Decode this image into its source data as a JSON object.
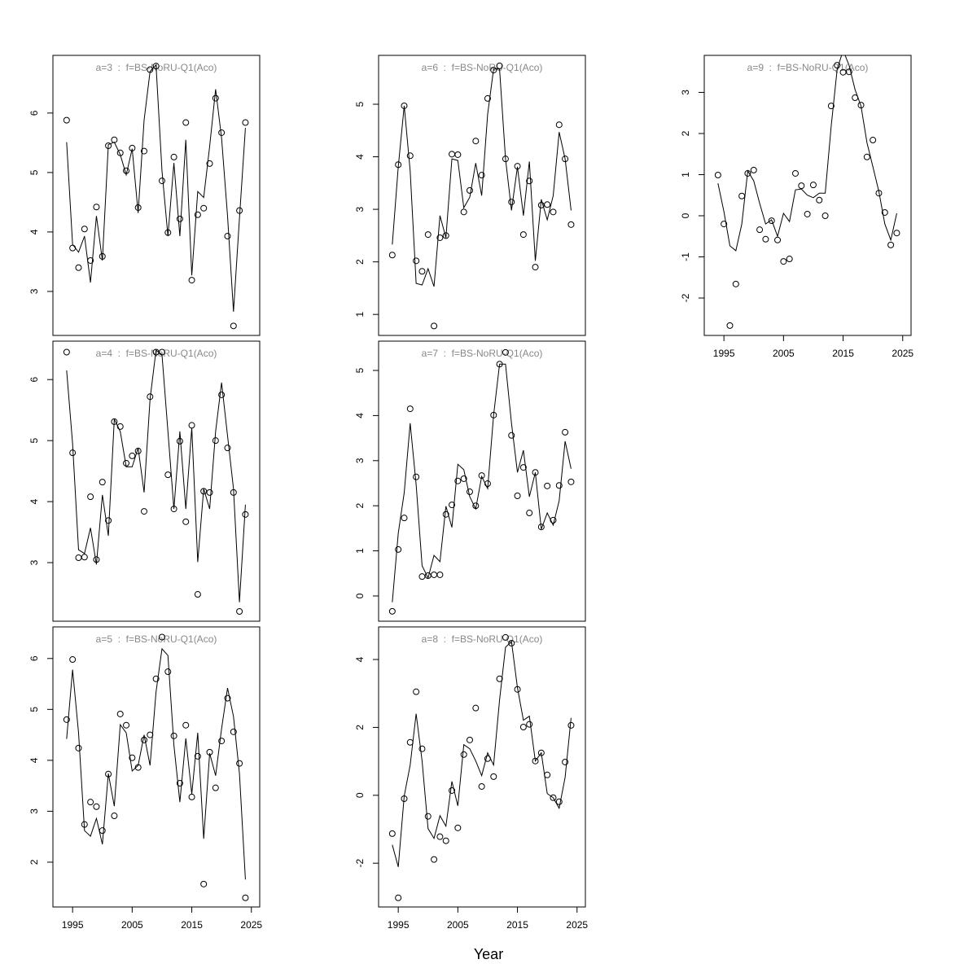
{
  "xlabel": "Year",
  "chart_data": [
    {
      "type": "line",
      "title": "a=3  :  f=BS-NoRU-Q1(Aco)",
      "x": [
        1994,
        1995,
        1996,
        1997,
        1998,
        1999,
        2000,
        2001,
        2002,
        2003,
        2004,
        2005,
        2006,
        2007,
        2008,
        2009,
        2010,
        2011,
        2012,
        2013,
        2014,
        2015,
        2016,
        2017,
        2018,
        2019,
        2020,
        2021,
        2022,
        2023,
        2024
      ],
      "xlim": [
        1991.7,
        2026.4
      ],
      "ylim": [
        2.26,
        6.97
      ],
      "yticks": [
        3,
        4,
        5,
        6
      ],
      "series": [
        {
          "style": "points",
          "color": "#000000",
          "values": [
            5.88,
            3.73,
            3.4,
            4.05,
            3.52,
            4.42,
            3.59,
            5.45,
            5.55,
            5.33,
            5.03,
            5.41,
            4.41,
            5.36,
            6.73,
            6.79,
            4.86,
            3.99,
            5.26,
            4.22,
            5.84,
            3.19,
            4.29,
            4.4,
            5.15,
            6.25,
            5.67,
            3.93,
            2.42,
            4.36,
            5.84
          ]
        },
        {
          "style": "line",
          "color": "#000000",
          "values": [
            5.51,
            3.79,
            3.66,
            3.93,
            3.15,
            4.27,
            3.52,
            5.47,
            5.51,
            5.3,
            4.96,
            5.4,
            4.32,
            5.88,
            6.7,
            6.81,
            5.03,
            3.93,
            5.16,
            3.93,
            5.55,
            3.27,
            4.68,
            4.58,
            5.44,
            6.4,
            5.58,
            4.27,
            2.66,
            4.23,
            5.75
          ]
        }
      ]
    },
    {
      "type": "line",
      "title": "a=4  :  f=BS-NoRU-Q1(Aco)",
      "x": [
        1994,
        1995,
        1996,
        1997,
        1998,
        1999,
        2000,
        2001,
        2002,
        2003,
        2004,
        2005,
        2006,
        2007,
        2008,
        2009,
        2010,
        2011,
        2012,
        2013,
        2014,
        2015,
        2016,
        2017,
        2018,
        2019,
        2020,
        2021,
        2022,
        2023,
        2024
      ],
      "xlim": [
        1991.7,
        2026.4
      ],
      "ylim": [
        2.04,
        6.63
      ],
      "yticks": [
        3,
        4,
        5,
        6
      ],
      "series": [
        {
          "style": "points",
          "color": "#000000",
          "values": [
            6.45,
            4.8,
            3.08,
            3.09,
            4.08,
            3.05,
            4.32,
            3.69,
            5.31,
            5.23,
            4.63,
            4.75,
            4.83,
            3.84,
            5.72,
            6.45,
            6.45,
            4.44,
            3.88,
            4.99,
            3.67,
            5.25,
            2.48,
            4.17,
            4.15,
            5.0,
            5.75,
            4.88,
            4.15,
            2.2,
            3.79
          ]
        },
        {
          "style": "line",
          "color": "#000000",
          "values": [
            6.15,
            4.95,
            3.21,
            3.15,
            3.57,
            2.97,
            4.11,
            3.44,
            5.35,
            5.15,
            4.57,
            4.57,
            4.88,
            4.15,
            5.68,
            6.48,
            6.41,
            5.15,
            3.88,
            5.15,
            3.88,
            5.21,
            3.01,
            4.21,
            3.88,
            5.15,
            5.95,
            5.08,
            4.21,
            2.35,
            3.95
          ]
        }
      ]
    },
    {
      "type": "line",
      "title": "a=5  :  f=BS-NoRU-Q1(Aco)",
      "x": [
        1994,
        1995,
        1996,
        1997,
        1998,
        1999,
        2000,
        2001,
        2002,
        2003,
        2004,
        2005,
        2006,
        2007,
        2008,
        2009,
        2010,
        2011,
        2012,
        2013,
        2014,
        2015,
        2016,
        2017,
        2018,
        2019,
        2020,
        2021,
        2022,
        2023,
        2024
      ],
      "xlim": [
        1991.7,
        2026.4
      ],
      "xticks": [
        1995,
        2005,
        2015,
        2025
      ],
      "ylim": [
        1.12,
        6.62
      ],
      "yticks": [
        2,
        3,
        4,
        5,
        6
      ],
      "series": [
        {
          "style": "points",
          "color": "#000000",
          "values": [
            4.8,
            5.98,
            4.24,
            2.74,
            3.18,
            3.09,
            2.62,
            3.73,
            2.91,
            4.91,
            4.69,
            4.05,
            3.86,
            4.4,
            4.5,
            5.6,
            6.42,
            5.74,
            4.48,
            3.55,
            4.69,
            3.28,
            4.08,
            1.57,
            4.16,
            3.46,
            4.38,
            5.22,
            4.56,
            3.94,
            1.3
          ]
        },
        {
          "style": "line",
          "color": "#000000",
          "values": [
            4.42,
            5.78,
            4.54,
            2.62,
            2.51,
            2.86,
            2.35,
            3.74,
            3.1,
            4.7,
            4.54,
            3.79,
            3.9,
            4.5,
            3.9,
            5.34,
            6.19,
            6.06,
            4.3,
            3.18,
            4.43,
            3.34,
            4.54,
            2.46,
            4.14,
            3.7,
            4.62,
            5.42,
            4.86,
            3.74,
            1.66
          ]
        }
      ]
    },
    {
      "type": "line",
      "title": "a=6  :  f=BS-NoRU-Q1(Aco)",
      "x": [
        1994,
        1995,
        1996,
        1997,
        1998,
        1999,
        2000,
        2001,
        2002,
        2003,
        2004,
        2005,
        2006,
        2007,
        2008,
        2009,
        2010,
        2011,
        2012,
        2013,
        2014,
        2015,
        2016,
        2017,
        2018,
        2019,
        2020,
        2021,
        2022,
        2023,
        2024
      ],
      "xlim": [
        1991.7,
        2026.4
      ],
      "ylim": [
        0.6,
        5.93
      ],
      "yticks": [
        1,
        2,
        3,
        4,
        5
      ],
      "series": [
        {
          "style": "points",
          "color": "#000000",
          "values": [
            2.13,
            3.85,
            4.97,
            4.02,
            2.02,
            1.82,
            2.52,
            0.78,
            2.46,
            2.5,
            4.05,
            4.04,
            2.95,
            3.36,
            4.3,
            3.65,
            5.11,
            5.65,
            5.73,
            3.96,
            3.14,
            3.82,
            2.52,
            3.54,
            1.9,
            3.08,
            3.09,
            2.95,
            4.61,
            3.96,
            2.71
          ]
        },
        {
          "style": "line",
          "color": "#000000",
          "values": [
            2.33,
            3.81,
            4.97,
            3.73,
            1.59,
            1.56,
            1.87,
            1.53,
            2.88,
            2.46,
            3.96,
            3.93,
            3.03,
            3.23,
            3.88,
            3.26,
            4.81,
            5.67,
            5.67,
            3.96,
            2.98,
            3.81,
            2.88,
            3.91,
            2.02,
            3.19,
            2.8,
            3.26,
            4.47,
            3.96,
            2.98
          ]
        }
      ]
    },
    {
      "type": "line",
      "title": "a=7  :  f=BS-NoRU-Q1(Aco)",
      "x": [
        1994,
        1995,
        1996,
        1997,
        1998,
        1999,
        2000,
        2001,
        2002,
        2003,
        2004,
        2005,
        2006,
        2007,
        2008,
        2009,
        2010,
        2011,
        2012,
        2013,
        2014,
        2015,
        2016,
        2017,
        2018,
        2019,
        2020,
        2021,
        2022,
        2023,
        2024
      ],
      "xlim": [
        1991.7,
        2026.4
      ],
      "ylim": [
        -0.56,
        5.65
      ],
      "yticks": [
        0,
        1,
        2,
        3,
        4,
        5
      ],
      "series": [
        {
          "style": "points",
          "color": "#000000",
          "values": [
            -0.34,
            1.03,
            1.73,
            4.15,
            2.64,
            0.43,
            0.45,
            0.47,
            0.47,
            1.81,
            2.02,
            2.55,
            2.6,
            2.31,
            2.0,
            2.67,
            2.49,
            4.01,
            5.14,
            5.4,
            3.56,
            2.22,
            2.85,
            1.84,
            2.74,
            1.53,
            2.44,
            1.68,
            2.45,
            3.63,
            2.53
          ]
        },
        {
          "style": "line",
          "color": "#000000",
          "values": [
            -0.14,
            1.39,
            2.29,
            3.83,
            2.47,
            0.67,
            0.4,
            0.9,
            0.76,
            1.99,
            1.52,
            2.92,
            2.8,
            2.2,
            1.93,
            2.65,
            2.38,
            4.01,
            5.14,
            5.14,
            3.83,
            2.74,
            3.23,
            2.2,
            2.74,
            1.48,
            1.84,
            1.57,
            2.11,
            3.43,
            2.82
          ]
        }
      ]
    },
    {
      "type": "line",
      "title": "a=8  :  f=BS-NoRU-Q1(Aco)",
      "x": [
        1994,
        1995,
        1996,
        1997,
        1998,
        1999,
        2000,
        2001,
        2002,
        2003,
        2004,
        2005,
        2006,
        2007,
        2008,
        2009,
        2010,
        2011,
        2012,
        2013,
        2014,
        2015,
        2016,
        2017,
        2018,
        2019,
        2020,
        2021,
        2022,
        2023,
        2024
      ],
      "xlim": [
        1991.7,
        2026.4
      ],
      "xticks": [
        1995,
        2005,
        2015,
        2025
      ],
      "ylim": [
        -3.29,
        4.96
      ],
      "yticks": [
        -2,
        0,
        2,
        4
      ],
      "series": [
        {
          "style": "points",
          "color": "#000000",
          "values": [
            -1.13,
            -3.02,
            -0.1,
            1.56,
            3.05,
            1.37,
            -0.62,
            -1.89,
            -1.22,
            -1.34,
            0.14,
            -0.96,
            1.2,
            1.63,
            2.57,
            0.26,
            1.08,
            0.55,
            3.43,
            4.65,
            4.48,
            3.12,
            2.01,
            2.09,
            1.01,
            1.25,
            0.6,
            -0.07,
            -0.19,
            0.98,
            2.06
          ]
        },
        {
          "style": "line",
          "color": "#000000",
          "values": [
            -1.46,
            -2.11,
            -0.02,
            0.89,
            2.4,
            1.01,
            -0.98,
            -1.27,
            -0.6,
            -0.91,
            0.41,
            -0.31,
            1.49,
            1.37,
            1.01,
            0.58,
            1.25,
            0.89,
            2.81,
            4.36,
            4.53,
            3.17,
            2.21,
            2.33,
            1.01,
            1.25,
            0.05,
            -0.07,
            -0.38,
            0.53,
            2.28
          ]
        }
      ]
    },
    {
      "type": "line",
      "title": "a=9  :  f=BS-NoRU-Q1(Aco)",
      "x": [
        1994,
        1995,
        1996,
        1997,
        1998,
        1999,
        2000,
        2001,
        2002,
        2003,
        2004,
        2005,
        2006,
        2007,
        2008,
        2009,
        2010,
        2011,
        2012,
        2013,
        2014,
        2015,
        2016,
        2017,
        2018,
        2019,
        2020,
        2021,
        2022,
        2023,
        2024
      ],
      "xlim": [
        1991.7,
        2026.4
      ],
      "xticks": [
        1995,
        2005,
        2015,
        2025
      ],
      "ylim": [
        -2.91,
        3.9
      ],
      "yticks": [
        -2,
        -1,
        0,
        1,
        2,
        3
      ],
      "series": [
        {
          "style": "points",
          "color": "#000000",
          "values": [
            0.99,
            -0.2,
            -2.67,
            -1.66,
            0.48,
            1.03,
            1.11,
            -0.34,
            -0.57,
            -0.12,
            -0.59,
            -1.11,
            -1.05,
            1.03,
            0.73,
            0.04,
            0.75,
            0.38,
            0.0,
            2.67,
            3.66,
            3.49,
            3.5,
            2.87,
            2.69,
            1.43,
            1.84,
            0.55,
            0.08,
            -0.71,
            -0.42
          ]
        },
        {
          "style": "line",
          "color": "#000000",
          "values": [
            0.79,
            0.1,
            -0.73,
            -0.85,
            -0.2,
            1.09,
            0.85,
            0.3,
            -0.2,
            -0.1,
            -0.5,
            0.06,
            -0.14,
            0.63,
            0.65,
            0.5,
            0.44,
            0.55,
            0.55,
            2.18,
            3.56,
            4.02,
            3.66,
            3.07,
            2.67,
            1.78,
            1.19,
            0.59,
            -0.2,
            -0.59,
            0.06
          ]
        }
      ]
    }
  ]
}
